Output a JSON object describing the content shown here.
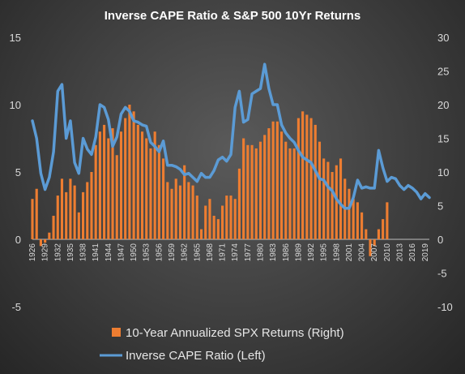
{
  "chart_data": {
    "type": "bar+line",
    "title": "Inverse CAPE Ratio & S&P 500 10Yr Returns",
    "left_axis": {
      "min": -5,
      "max": 15,
      "ticks": [
        -5,
        0,
        5,
        10,
        15
      ]
    },
    "right_axis": {
      "min": -10,
      "max": 30,
      "ticks": [
        -10,
        -5,
        0,
        5,
        10,
        15,
        20,
        25,
        30
      ]
    },
    "x_tick_labels": [
      "1926",
      "1929",
      "1932",
      "1935",
      "1938",
      "1941",
      "1944",
      "1947",
      "1950",
      "1953",
      "1956",
      "1959",
      "1962",
      "1965",
      "1968",
      "1971",
      "1974",
      "1977",
      "1980",
      "1983",
      "1986",
      "1989",
      "1992",
      "1995",
      "1998",
      "2001",
      "2004",
      "2007",
      "2010",
      "2013",
      "2016",
      "2019"
    ],
    "x_range": [
      1926,
      2020
    ],
    "series": [
      {
        "name": "10-Year Annualized SPX Returns (Right)",
        "type": "bar",
        "axis": "right",
        "color": "#ed7d31",
        "x": [
          1926,
          1927,
          1928,
          1929,
          1930,
          1931,
          1932,
          1933,
          1934,
          1935,
          1936,
          1937,
          1938,
          1939,
          1940,
          1941,
          1942,
          1943,
          1944,
          1945,
          1946,
          1947,
          1948,
          1949,
          1950,
          1951,
          1952,
          1953,
          1954,
          1955,
          1956,
          1957,
          1958,
          1959,
          1960,
          1961,
          1962,
          1963,
          1964,
          1965,
          1966,
          1967,
          1968,
          1969,
          1970,
          1971,
          1972,
          1973,
          1974,
          1975,
          1976,
          1977,
          1978,
          1979,
          1980,
          1981,
          1982,
          1983,
          1984,
          1985,
          1986,
          1987,
          1988,
          1989,
          1990,
          1991,
          1992,
          1993,
          1994,
          1995,
          1996,
          1997,
          1998,
          1999,
          2000,
          2001,
          2002,
          2003,
          2004,
          2005,
          2006,
          2007,
          2008,
          2009,
          2010
        ],
        "values": [
          6,
          7.5,
          -1,
          -0.5,
          1,
          3.5,
          6.5,
          9,
          7,
          9,
          8,
          4,
          7,
          8.5,
          10,
          14,
          16,
          17,
          15,
          16.5,
          12.5,
          16,
          18,
          20,
          19,
          17,
          16,
          15,
          13.5,
          16,
          14,
          12,
          8.5,
          7.5,
          9,
          8,
          11,
          8.5,
          8,
          6.5,
          1.5,
          5,
          6,
          3.5,
          3,
          5,
          6.5,
          6.5,
          6,
          10.5,
          15,
          14,
          14,
          13.5,
          14.5,
          15.5,
          16.5,
          17.5,
          17.5,
          16,
          14.5,
          13.5,
          13.5,
          18,
          19,
          18.5,
          18,
          17,
          14.5,
          12,
          11.5,
          10,
          11,
          12,
          9,
          7.5,
          6,
          5.5,
          4,
          1.5,
          -2.5,
          -1,
          1.5,
          3,
          5.5
        ]
      },
      {
        "name": "Inverse CAPE Ratio (Left)",
        "type": "line",
        "axis": "left",
        "color": "#5b9bd5",
        "x": [
          1926,
          1927,
          1928,
          1929,
          1930,
          1931,
          1932,
          1933,
          1934,
          1935,
          1936,
          1937,
          1938,
          1939,
          1940,
          1941,
          1942,
          1943,
          1944,
          1945,
          1946,
          1947,
          1948,
          1949,
          1950,
          1951,
          1952,
          1953,
          1954,
          1955,
          1956,
          1957,
          1958,
          1959,
          1960,
          1961,
          1962,
          1963,
          1964,
          1965,
          1966,
          1967,
          1968,
          1969,
          1970,
          1971,
          1972,
          1973,
          1974,
          1975,
          1976,
          1977,
          1978,
          1979,
          1980,
          1981,
          1982,
          1983,
          1984,
          1985,
          1986,
          1987,
          1988,
          1989,
          1990,
          1991,
          1992,
          1993,
          1994,
          1995,
          1996,
          1997,
          1998,
          1999,
          2000,
          2001,
          2002,
          2003,
          2004,
          2005,
          2006,
          2007,
          2008,
          2009,
          2010,
          2011,
          2012,
          2013,
          2014,
          2015,
          2016,
          2017,
          2018,
          2019,
          2020
        ],
        "values": [
          8.8,
          7.5,
          4.9,
          3.7,
          4.6,
          6.5,
          11,
          11.5,
          7.5,
          8.8,
          5.7,
          4.9,
          7.5,
          6.7,
          6.3,
          7.6,
          10,
          9.8,
          8.9,
          6.9,
          7.6,
          9.3,
          9.8,
          9.5,
          8.8,
          8.7,
          8.5,
          8.4,
          7.2,
          6.9,
          6.5,
          7.3,
          5.5,
          5.5,
          5.4,
          5.2,
          4.8,
          4.9,
          4.6,
          4.3,
          4.9,
          4.6,
          4.6,
          5.1,
          5.9,
          6.1,
          5.8,
          6.3,
          9.8,
          11,
          8.7,
          8.9,
          10.8,
          11,
          11.2,
          13,
          11.2,
          10,
          10,
          8.5,
          7.9,
          7.5,
          7.2,
          6.6,
          6.1,
          5.9,
          5.7,
          5.1,
          4.5,
          4.4,
          3.9,
          3.6,
          3,
          2.6,
          2.3,
          2.3,
          3.1,
          4.4,
          3.8,
          3.9,
          3.8,
          3.8,
          6.6,
          5.3,
          4.3,
          4.6,
          4.5,
          4,
          3.7,
          4,
          3.8,
          3.5,
          3,
          3.4,
          3.1
        ]
      }
    ],
    "legend_position": "bottom",
    "grid": false
  }
}
